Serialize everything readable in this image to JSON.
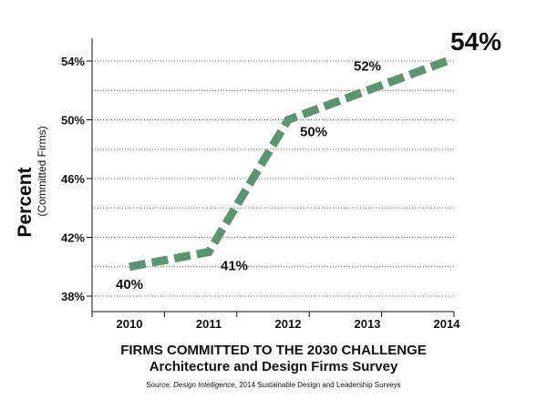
{
  "chart_data": {
    "type": "line",
    "title": "FIRMS COMMITTED TO THE 2030 CHALLENGE",
    "subtitle": "Architecture and Design Firms Survey",
    "source_prefix": "Source:",
    "source_name": "Design Intelligence",
    "source_rest": ", 2014 Sustainable Design and Leadership Surveys",
    "ylabel": "Percent",
    "ylabel_sub": "(Committed Firms)",
    "xlabel": "",
    "x": [
      "2010",
      "2011",
      "2012",
      "2013",
      "2014"
    ],
    "y_ticks": [
      "38%",
      "42%",
      "46%",
      "50%",
      "54%"
    ],
    "ylim": [
      37,
      55
    ],
    "grid": true,
    "series": [
      {
        "values": [
          40,
          41,
          50,
          52,
          54
        ],
        "labels": [
          "40%",
          "41%",
          "50%",
          "52%",
          "54%"
        ],
        "color": "#5a9470"
      }
    ]
  }
}
